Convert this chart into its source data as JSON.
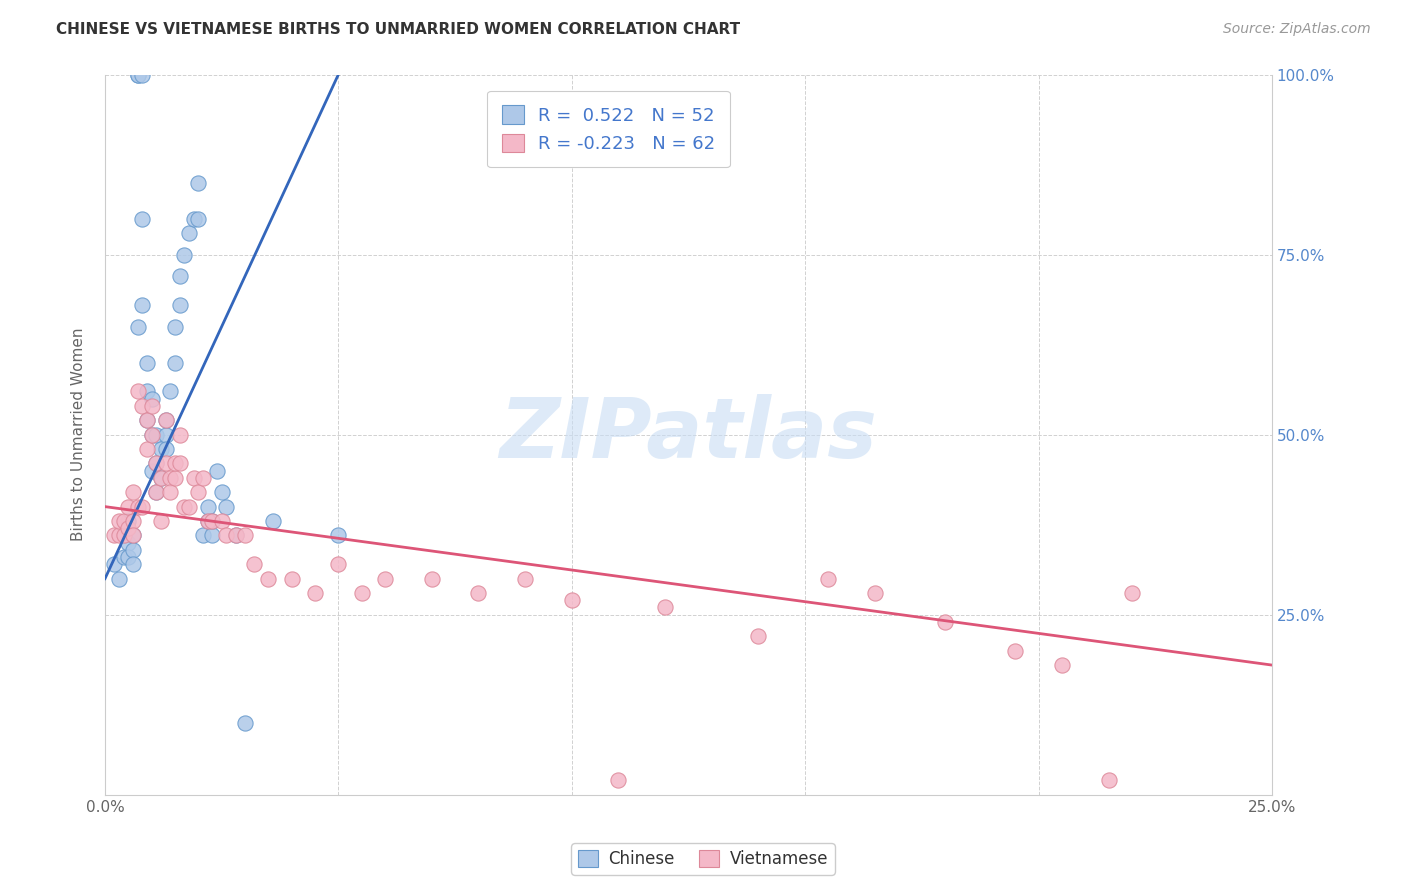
{
  "title": "CHINESE VS VIETNAMESE BIRTHS TO UNMARRIED WOMEN CORRELATION CHART",
  "source": "Source: ZipAtlas.com",
  "ylabel_label": "Births to Unmarried Women",
  "watermark": "ZIPatlas",
  "legend_chinese_r": "R =  0.522",
  "legend_chinese_n": "N = 52",
  "legend_vietnamese_r": "R = -0.223",
  "legend_vietnamese_n": "N = 62",
  "xlim": [
    0.0,
    0.25
  ],
  "ylim": [
    0.0,
    1.0
  ],
  "chinese_fill_color": "#aec8e8",
  "chinese_edge_color": "#6699cc",
  "vietnamese_fill_color": "#f4b8c8",
  "vietnamese_edge_color": "#dd8899",
  "chinese_line_color": "#3366bb",
  "vietnamese_line_color": "#dd5577",
  "background_color": "#ffffff",
  "right_axis_color": "#5588cc",
  "legend_text_color": "#4477cc",
  "chinese_scatter_x": [
    0.002,
    0.003,
    0.004,
    0.004,
    0.005,
    0.005,
    0.005,
    0.006,
    0.006,
    0.006,
    0.007,
    0.007,
    0.007,
    0.008,
    0.008,
    0.008,
    0.009,
    0.009,
    0.009,
    0.01,
    0.01,
    0.01,
    0.011,
    0.011,
    0.011,
    0.012,
    0.012,
    0.013,
    0.013,
    0.013,
    0.014,
    0.015,
    0.015,
    0.016,
    0.016,
    0.017,
    0.018,
    0.019,
    0.02,
    0.02,
    0.021,
    0.022,
    0.022,
    0.023,
    0.023,
    0.024,
    0.025,
    0.026,
    0.028,
    0.03,
    0.036,
    0.05
  ],
  "chinese_scatter_y": [
    0.32,
    0.3,
    0.36,
    0.33,
    0.35,
    0.33,
    0.38,
    0.36,
    0.34,
    0.32,
    1.0,
    1.0,
    0.65,
    1.0,
    0.8,
    0.68,
    0.6,
    0.56,
    0.52,
    0.55,
    0.5,
    0.45,
    0.5,
    0.46,
    0.42,
    0.48,
    0.44,
    0.5,
    0.48,
    0.52,
    0.56,
    0.65,
    0.6,
    0.72,
    0.68,
    0.75,
    0.78,
    0.8,
    0.85,
    0.8,
    0.36,
    0.38,
    0.4,
    0.36,
    0.38,
    0.45,
    0.42,
    0.4,
    0.36,
    0.1,
    0.38,
    0.36
  ],
  "vietnamese_scatter_x": [
    0.002,
    0.003,
    0.003,
    0.004,
    0.004,
    0.005,
    0.005,
    0.006,
    0.006,
    0.006,
    0.007,
    0.007,
    0.008,
    0.008,
    0.009,
    0.009,
    0.01,
    0.01,
    0.011,
    0.011,
    0.012,
    0.012,
    0.013,
    0.013,
    0.014,
    0.014,
    0.015,
    0.015,
    0.016,
    0.016,
    0.017,
    0.018,
    0.019,
    0.02,
    0.021,
    0.022,
    0.023,
    0.025,
    0.026,
    0.028,
    0.03,
    0.032,
    0.035,
    0.04,
    0.045,
    0.05,
    0.055,
    0.06,
    0.07,
    0.08,
    0.09,
    0.1,
    0.11,
    0.12,
    0.14,
    0.155,
    0.165,
    0.18,
    0.195,
    0.205,
    0.215,
    0.22
  ],
  "vietnamese_scatter_y": [
    0.36,
    0.36,
    0.38,
    0.36,
    0.38,
    0.37,
    0.4,
    0.38,
    0.36,
    0.42,
    0.4,
    0.56,
    0.54,
    0.4,
    0.48,
    0.52,
    0.5,
    0.54,
    0.42,
    0.46,
    0.38,
    0.44,
    0.46,
    0.52,
    0.44,
    0.42,
    0.44,
    0.46,
    0.5,
    0.46,
    0.4,
    0.4,
    0.44,
    0.42,
    0.44,
    0.38,
    0.38,
    0.38,
    0.36,
    0.36,
    0.36,
    0.32,
    0.3,
    0.3,
    0.28,
    0.32,
    0.28,
    0.3,
    0.3,
    0.28,
    0.3,
    0.27,
    0.02,
    0.26,
    0.22,
    0.3,
    0.28,
    0.24,
    0.2,
    0.18,
    0.02,
    0.28
  ],
  "chinese_trend_x": [
    0.0,
    0.05
  ],
  "chinese_trend_y": [
    0.3,
    1.0
  ],
  "vietnamese_trend_x": [
    0.0,
    0.25
  ],
  "vietnamese_trend_y": [
    0.4,
    0.18
  ]
}
